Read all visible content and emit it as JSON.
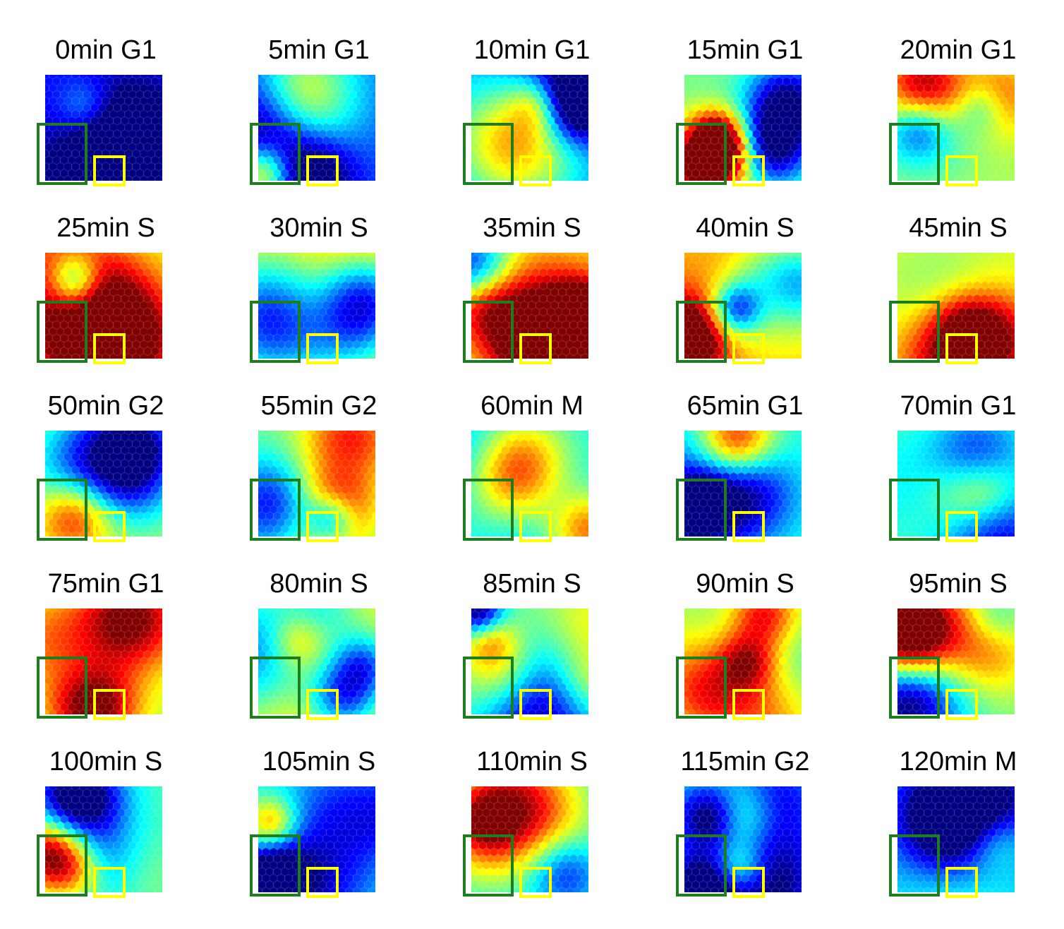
{
  "panels": [
    {
      "label": "0min G1",
      "seed": 3,
      "bias": -0.35
    },
    {
      "label": "5min G1",
      "seed": 7,
      "bias": -0.3
    },
    {
      "label": "10min G1",
      "seed": 11,
      "bias": -0.25
    },
    {
      "label": "15min G1",
      "seed": 13,
      "bias": 0.0
    },
    {
      "label": "20min G1",
      "seed": 17,
      "bias": 0.05
    },
    {
      "label": "25min S",
      "seed": 19,
      "bias": 0.1
    },
    {
      "label": "30min S",
      "seed": 23,
      "bias": 0.15
    },
    {
      "label": "35min S",
      "seed": 29,
      "bias": 0.15
    },
    {
      "label": "40min S",
      "seed": 31,
      "bias": 0.2
    },
    {
      "label": "45min S",
      "seed": 37,
      "bias": 0.1
    },
    {
      "label": "50min G2",
      "seed": 41,
      "bias": 0.05
    },
    {
      "label": "55min G2",
      "seed": 43,
      "bias": 0.0
    },
    {
      "label": "60min M",
      "seed": 47,
      "bias": -0.1
    },
    {
      "label": "65min G1",
      "seed": 53,
      "bias": -0.1
    },
    {
      "label": "70min G1",
      "seed": 59,
      "bias": -0.05
    },
    {
      "label": "75min G1",
      "seed": 61,
      "bias": 0.05
    },
    {
      "label": "80min S",
      "seed": 67,
      "bias": 0.1
    },
    {
      "label": "85min S",
      "seed": 71,
      "bias": 0.0
    },
    {
      "label": "90min S",
      "seed": 73,
      "bias": 0.0
    },
    {
      "label": "95min S",
      "seed": 79,
      "bias": 0.0
    },
    {
      "label": "100min S",
      "seed": 83,
      "bias": -0.05
    },
    {
      "label": "105min S",
      "seed": 89,
      "bias": -0.1
    },
    {
      "label": "110min S",
      "seed": 97,
      "bias": -0.1
    },
    {
      "label": "115min G2",
      "seed": 101,
      "bias": -0.15
    },
    {
      "label": "120min M",
      "seed": 103,
      "bias": -0.15
    }
  ],
  "colors": {
    "green_box": "#1e7d1e",
    "yellow_box": "#ffff00",
    "colormap": "jet"
  }
}
